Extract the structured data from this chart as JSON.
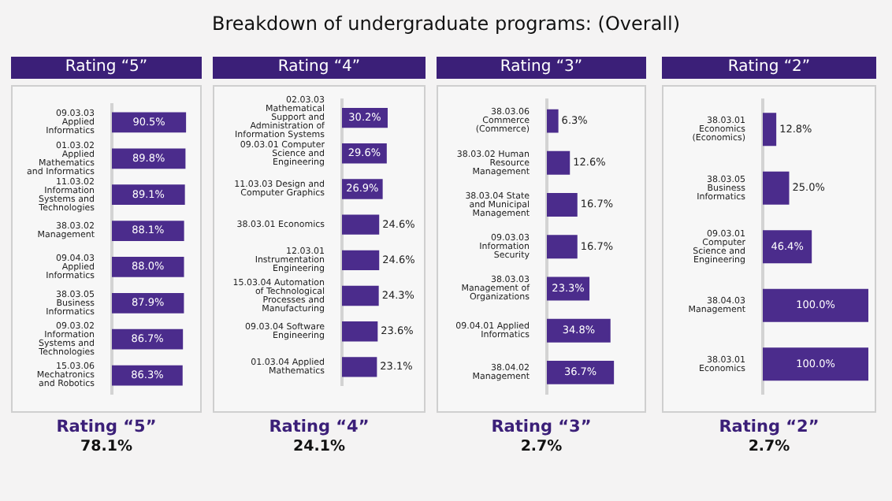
{
  "chart_data": [
    {
      "type": "other",
      "title": "Breakdown of undergraduate programs: (Overall)"
    },
    {
      "type": "bar",
      "orientation": "horizontal",
      "title": "Rating “5”",
      "categories": [
        "09.03.03 Applied Informatics",
        "01.03.02 Applied Mathematics and Informatics",
        "11.03.02 Information Systems and Technologies",
        "38.03.02 Management",
        "09.04.03 Applied Informatics",
        "38.03.05 Business Informatics",
        "09.03.02 Information Systems and Technologies",
        "15.03.06 Mechatronics and Robotics"
      ],
      "values": [
        90.5,
        89.8,
        89.1,
        88.1,
        88.0,
        87.9,
        86.7,
        86.3
      ],
      "value_labels": [
        "90.5%",
        "89.8%",
        "89.1%",
        "88.1%",
        "88.0%",
        "87.9%",
        "86.7%",
        "86.3%"
      ],
      "color": "#4b2c8c",
      "tick_labels": "y",
      "annotations": [
        "Rating “5”",
        "78.1%"
      ]
    },
    {
      "type": "bar",
      "orientation": "horizontal",
      "title": "Rating “4”",
      "categories": [
        "02.03.03 Mathematical Support and Administration of Information Systems",
        "09.03.01 Computer Science and Engineering",
        "11.03.03 Design and Computer Graphics",
        "38.03.01 Economics",
        "12.03.01 Instrumentation Engineering",
        "15.03.04 Automation of Technological Processes and Manufacturing",
        "09.03.04 Software Engineering",
        "01.03.04 Applied Mathematics"
      ],
      "values": [
        30.2,
        29.6,
        26.9,
        24.6,
        24.6,
        24.3,
        23.6,
        23.1
      ],
      "value_labels": [
        "30.2%",
        "29.6%",
        "26.9%",
        "24.6%",
        "24.6%",
        "24.3%",
        "23.6%",
        "23.1%"
      ],
      "color": "#4b2c8c",
      "tick_labels": "y",
      "annotations": [
        "Rating “4”",
        "24.1%"
      ]
    },
    {
      "type": "bar",
      "orientation": "horizontal",
      "title": "Rating “3”",
      "categories": [
        "38.03.06 Commerce (Commerce)",
        "38.03.02 Human Resource Management",
        "38.03.04 State and Municipal Management",
        "09.03.03 Information Security",
        "38.03.03 Management of Organizations",
        "09.04.01 Applied Informatics",
        "38.04.02 Management"
      ],
      "values": [
        6.3,
        12.6,
        16.7,
        16.7,
        23.3,
        34.8,
        36.7
      ],
      "value_labels": [
        "6.3%",
        "12.6%",
        "16.7%",
        "16.7%",
        "23.3%",
        "34.8%",
        "36.7%"
      ],
      "color": "#4b2c8c",
      "tick_labels": "y",
      "annotations": [
        "Rating “3”",
        "2.7%"
      ]
    },
    {
      "type": "bar",
      "orientation": "horizontal",
      "title": "Rating “2”",
      "categories": [
        "38.03.01 Economics (Economics)",
        "38.03.05 Business Informatics",
        "09.03.01 Computer Science and Engineering",
        "38.04.03 Management",
        "38.03.01 Economics"
      ],
      "values": [
        12.8,
        25.0,
        46.4,
        100.0,
        100.0
      ],
      "value_labels": [
        "12.8%",
        "25.0%",
        "46.4%",
        "100.0%",
        "100.0%"
      ],
      "color": "#4b2c8c",
      "tick_labels": "y",
      "annotations": [
        "Rating “2”",
        "2.7%"
      ]
    }
  ]
}
